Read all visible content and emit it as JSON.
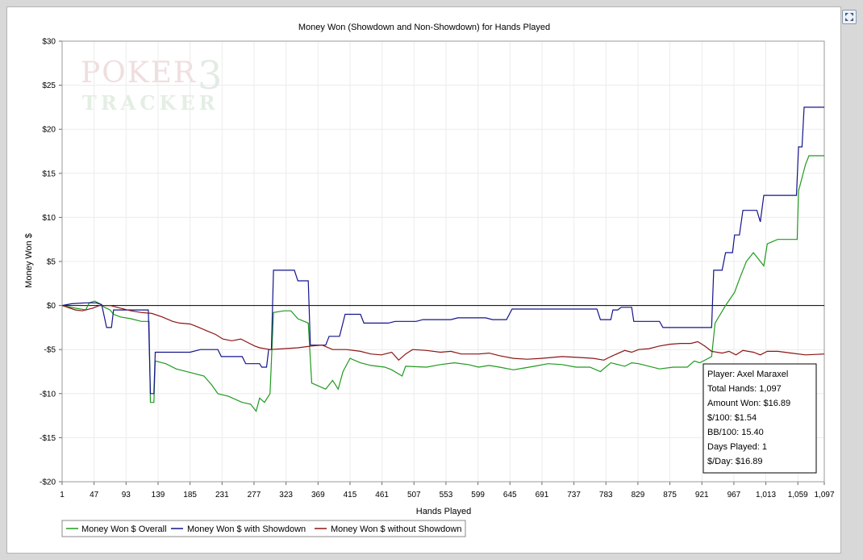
{
  "colors": {
    "overall": "#1f9a1f",
    "showdown": "#14148c",
    "non_showdown": "#8c1414",
    "grid": "#ececec"
  },
  "watermark": {
    "line1": "POKER",
    "mark": "3",
    "line2": "TRACKER"
  },
  "chart_data": {
    "type": "line",
    "title": "Money Won (Showdown and Non-Showdown) for Hands Played",
    "xlabel": "Hands Played",
    "ylabel": "Money Won $",
    "xlim": [
      1,
      1097
    ],
    "ylim": [
      -20,
      30
    ],
    "xticks": [
      1,
      47,
      93,
      139,
      185,
      231,
      277,
      323,
      369,
      415,
      461,
      507,
      553,
      599,
      645,
      691,
      737,
      783,
      829,
      875,
      921,
      967,
      1013,
      1059,
      1097
    ],
    "xtick_labels": [
      "1",
      "47",
      "93",
      "139",
      "185",
      "231",
      "277",
      "323",
      "369",
      "415",
      "461",
      "507",
      "553",
      "599",
      "645",
      "691",
      "737",
      "783",
      "829",
      "875",
      "921",
      "967",
      "1,013",
      "1,059",
      "1,097"
    ],
    "yticks": [
      -20,
      -15,
      -10,
      -5,
      0,
      5,
      10,
      15,
      20,
      25,
      30
    ],
    "ytick_labels": [
      "-$20",
      "-$15",
      "-$10",
      "-$5",
      "$0",
      "$5",
      "$10",
      "$15",
      "$20",
      "$25",
      "$30"
    ],
    "grid": true,
    "legend_position": "bottom-left",
    "series": [
      {
        "name": "Money Won $ Overall",
        "color": "#1f9a1f",
        "points": [
          [
            1,
            0
          ],
          [
            20,
            -0.3
          ],
          [
            35,
            -0.5
          ],
          [
            40,
            0.3
          ],
          [
            48,
            0.5
          ],
          [
            55,
            0.2
          ],
          [
            62,
            -0.2
          ],
          [
            70,
            -0.5
          ],
          [
            75,
            -1
          ],
          [
            85,
            -1.3
          ],
          [
            100,
            -1.5
          ],
          [
            115,
            -1.8
          ],
          [
            126,
            -1.8
          ],
          [
            128,
            -11
          ],
          [
            133,
            -11
          ],
          [
            135,
            -6.3
          ],
          [
            150,
            -6.6
          ],
          [
            165,
            -7.2
          ],
          [
            185,
            -7.6
          ],
          [
            205,
            -8
          ],
          [
            216,
            -9
          ],
          [
            225,
            -10
          ],
          [
            240,
            -10.3
          ],
          [
            260,
            -11
          ],
          [
            272,
            -11.2
          ],
          [
            280,
            -12
          ],
          [
            285,
            -10.5
          ],
          [
            292,
            -11
          ],
          [
            300,
            -10
          ],
          [
            305,
            -0.8
          ],
          [
            320,
            -0.6
          ],
          [
            330,
            -0.6
          ],
          [
            340,
            -1.5
          ],
          [
            355,
            -2
          ],
          [
            360,
            -8.8
          ],
          [
            380,
            -9.5
          ],
          [
            390,
            -8.5
          ],
          [
            398,
            -9.5
          ],
          [
            405,
            -7.5
          ],
          [
            415,
            -6
          ],
          [
            430,
            -6.5
          ],
          [
            445,
            -6.8
          ],
          [
            465,
            -7
          ],
          [
            475,
            -7.3
          ],
          [
            490,
            -8
          ],
          [
            495,
            -6.9
          ],
          [
            525,
            -7
          ],
          [
            545,
            -6.7
          ],
          [
            565,
            -6.5
          ],
          [
            585,
            -6.7
          ],
          [
            600,
            -7
          ],
          [
            615,
            -6.8
          ],
          [
            630,
            -7
          ],
          [
            650,
            -7.3
          ],
          [
            665,
            -7.1
          ],
          [
            680,
            -6.9
          ],
          [
            700,
            -6.6
          ],
          [
            720,
            -6.7
          ],
          [
            740,
            -7
          ],
          [
            760,
            -7
          ],
          [
            775,
            -7.5
          ],
          [
            790,
            -6.5
          ],
          [
            810,
            -6.9
          ],
          [
            820,
            -6.5
          ],
          [
            830,
            -6.6
          ],
          [
            845,
            -6.9
          ],
          [
            860,
            -7.2
          ],
          [
            880,
            -7
          ],
          [
            900,
            -7
          ],
          [
            910,
            -6.3
          ],
          [
            918,
            -6.5
          ],
          [
            935,
            -5.8
          ],
          [
            940,
            -2
          ],
          [
            955,
            0
          ],
          [
            968,
            1.5
          ],
          [
            975,
            3
          ],
          [
            985,
            5
          ],
          [
            995,
            6
          ],
          [
            1000,
            5.5
          ],
          [
            1010,
            4.5
          ],
          [
            1015,
            7
          ],
          [
            1030,
            7.5
          ],
          [
            1058,
            7.5
          ],
          [
            1060,
            13
          ],
          [
            1070,
            16
          ],
          [
            1075,
            17
          ],
          [
            1097,
            17
          ]
        ]
      },
      {
        "name": "Money Won $ with Showdown",
        "color": "#14148c",
        "points": [
          [
            1,
            0
          ],
          [
            15,
            0.2
          ],
          [
            35,
            0.3
          ],
          [
            50,
            0.3
          ],
          [
            58,
            0.1
          ],
          [
            65,
            -2.5
          ],
          [
            72,
            -2.5
          ],
          [
            75,
            -0.5
          ],
          [
            115,
            -0.5
          ],
          [
            125,
            -0.5
          ],
          [
            128,
            -10
          ],
          [
            133,
            -10
          ],
          [
            135,
            -5.3
          ],
          [
            165,
            -5.3
          ],
          [
            185,
            -5.3
          ],
          [
            200,
            -5
          ],
          [
            225,
            -5
          ],
          [
            230,
            -5.8
          ],
          [
            260,
            -5.8
          ],
          [
            265,
            -6.6
          ],
          [
            285,
            -6.6
          ],
          [
            288,
            -7
          ],
          [
            295,
            -7
          ],
          [
            298,
            -5
          ],
          [
            302,
            -5
          ],
          [
            305,
            4
          ],
          [
            335,
            4
          ],
          [
            340,
            2.8
          ],
          [
            355,
            2.8
          ],
          [
            358,
            -4.5
          ],
          [
            380,
            -4.5
          ],
          [
            385,
            -3.5
          ],
          [
            400,
            -3.5
          ],
          [
            408,
            -1
          ],
          [
            430,
            -1
          ],
          [
            435,
            -2
          ],
          [
            470,
            -2
          ],
          [
            480,
            -1.8
          ],
          [
            510,
            -1.8
          ],
          [
            520,
            -1.6
          ],
          [
            560,
            -1.6
          ],
          [
            570,
            -1.4
          ],
          [
            610,
            -1.4
          ],
          [
            620,
            -1.6
          ],
          [
            640,
            -1.6
          ],
          [
            648,
            -0.4
          ],
          [
            700,
            -0.4
          ],
          [
            750,
            -0.4
          ],
          [
            770,
            -0.4
          ],
          [
            775,
            -1.6
          ],
          [
            790,
            -1.6
          ],
          [
            793,
            -0.5
          ],
          [
            800,
            -0.5
          ],
          [
            805,
            -0.2
          ],
          [
            820,
            -0.2
          ],
          [
            823,
            -1.8
          ],
          [
            860,
            -1.8
          ],
          [
            865,
            -2.5
          ],
          [
            900,
            -2.5
          ],
          [
            935,
            -2.5
          ],
          [
            938,
            4
          ],
          [
            950,
            4
          ],
          [
            955,
            6
          ],
          [
            965,
            6
          ],
          [
            968,
            8
          ],
          [
            975,
            8
          ],
          [
            980,
            10.8
          ],
          [
            1000,
            10.8
          ],
          [
            1005,
            9.5
          ],
          [
            1010,
            12.5
          ],
          [
            1057,
            12.5
          ],
          [
            1060,
            18
          ],
          [
            1065,
            18
          ],
          [
            1068,
            22.5
          ],
          [
            1080,
            22.5
          ],
          [
            1097,
            22.5
          ]
        ]
      },
      {
        "name": "Money Won $ without Showdown",
        "color": "#8c1414",
        "points": [
          [
            1,
            0
          ],
          [
            20,
            -0.5
          ],
          [
            30,
            -0.6
          ],
          [
            45,
            -0.3
          ],
          [
            55,
            0
          ],
          [
            70,
            0
          ],
          [
            85,
            -0.3
          ],
          [
            100,
            -0.6
          ],
          [
            115,
            -0.8
          ],
          [
            130,
            -0.9
          ],
          [
            145,
            -1.3
          ],
          [
            160,
            -1.8
          ],
          [
            170,
            -2
          ],
          [
            185,
            -2.1
          ],
          [
            195,
            -2.4
          ],
          [
            210,
            -2.9
          ],
          [
            222,
            -3.3
          ],
          [
            232,
            -3.8
          ],
          [
            245,
            -4
          ],
          [
            258,
            -3.8
          ],
          [
            268,
            -4.2
          ],
          [
            278,
            -4.6
          ],
          [
            285,
            -4.8
          ],
          [
            300,
            -5
          ],
          [
            320,
            -4.9
          ],
          [
            340,
            -4.8
          ],
          [
            360,
            -4.6
          ],
          [
            375,
            -4.5
          ],
          [
            390,
            -5
          ],
          [
            410,
            -5
          ],
          [
            430,
            -5.2
          ],
          [
            445,
            -5.5
          ],
          [
            460,
            -5.6
          ],
          [
            475,
            -5.3
          ],
          [
            485,
            -6.2
          ],
          [
            495,
            -5.5
          ],
          [
            505,
            -5
          ],
          [
            525,
            -5.1
          ],
          [
            545,
            -5.3
          ],
          [
            560,
            -5.2
          ],
          [
            575,
            -5.5
          ],
          [
            600,
            -5.5
          ],
          [
            615,
            -5.4
          ],
          [
            630,
            -5.7
          ],
          [
            650,
            -6
          ],
          [
            670,
            -6.1
          ],
          [
            690,
            -6
          ],
          [
            705,
            -5.9
          ],
          [
            720,
            -5.8
          ],
          [
            745,
            -5.9
          ],
          [
            765,
            -6
          ],
          [
            780,
            -6.2
          ],
          [
            790,
            -5.8
          ],
          [
            810,
            -5.1
          ],
          [
            820,
            -5.3
          ],
          [
            830,
            -5
          ],
          [
            845,
            -4.9
          ],
          [
            860,
            -4.6
          ],
          [
            875,
            -4.4
          ],
          [
            890,
            -4.3
          ],
          [
            905,
            -4.3
          ],
          [
            915,
            -4.1
          ],
          [
            925,
            -4.6
          ],
          [
            935,
            -5.2
          ],
          [
            950,
            -5.4
          ],
          [
            960,
            -5.2
          ],
          [
            970,
            -5.6
          ],
          [
            980,
            -5.1
          ],
          [
            995,
            -5.3
          ],
          [
            1005,
            -5.6
          ],
          [
            1015,
            -5.2
          ],
          [
            1030,
            -5.2
          ],
          [
            1050,
            -5.4
          ],
          [
            1070,
            -5.6
          ],
          [
            1097,
            -5.5
          ]
        ]
      }
    ],
    "info_box": {
      "player": "Player: Axel Maraxel",
      "total_hands": "Total Hands: 1,097",
      "amount_won": "Amount Won: $16.89",
      "per_100": "$/100: $1.54",
      "bb_per_100": "BB/100: 15.40",
      "days_played": "Days Played: 1",
      "per_day": "$/Day: $16.89"
    }
  }
}
